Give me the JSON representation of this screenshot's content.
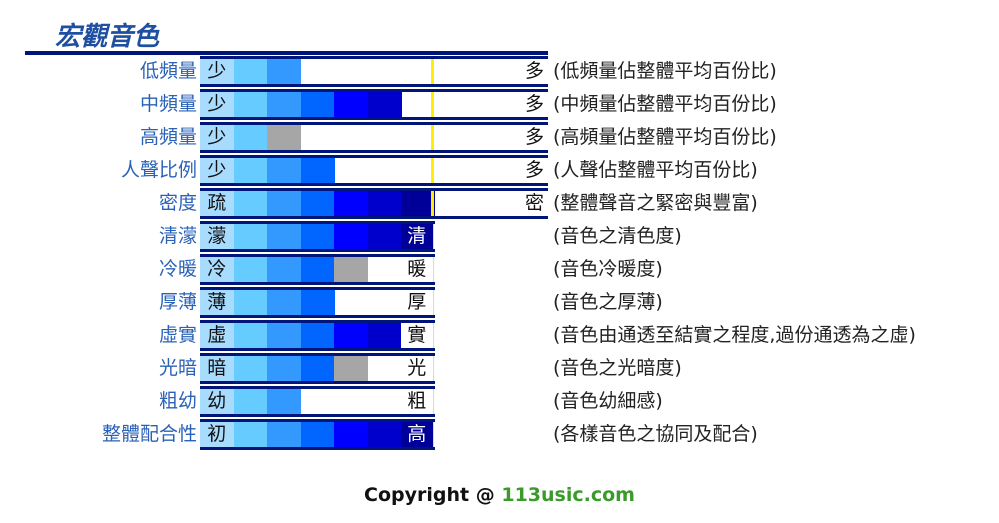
{
  "header": {
    "title": "宏觀音色"
  },
  "rows": [
    {
      "label": "低頻量",
      "low": "少",
      "high": "多",
      "description": "(低頻量佔整體平均百份比)",
      "level": 2,
      "extended": true
    },
    {
      "label": "中頻量",
      "low": "少",
      "high": "多",
      "description": "(中頻量佔整體平均百份比)",
      "level": 5,
      "extended": true
    },
    {
      "label": "高頻量",
      "low": "少",
      "high": "多",
      "description": "(高頻量佔整體平均百份比)",
      "level": 1.5,
      "extended": true
    },
    {
      "label": "人聲比例",
      "low": "少",
      "high": "多",
      "description": "(人聲佔整體平均百份比)",
      "level": 3,
      "extended": true
    },
    {
      "label": "密度",
      "low": "疏",
      "high": "密",
      "description": "(整體聲音之緊密與豐富)",
      "level": 6,
      "extended": true
    },
    {
      "label": "清濛",
      "low": "濛",
      "high": "清",
      "description": "(音色之清色度)",
      "level": 6,
      "extended": false
    },
    {
      "label": "冷暖",
      "low": "冷",
      "high": "暖",
      "description": "(音色冷暖度)",
      "level": 3.5,
      "extended": false
    },
    {
      "label": "厚薄",
      "low": "薄",
      "high": "厚",
      "description": "(音色之厚薄)",
      "level": 3,
      "extended": false
    },
    {
      "label": "虛實",
      "low": "虛",
      "high": "實",
      "description": "(音色由通透至結實之程度,過份通透為之虛)",
      "level": 5,
      "extended": false
    },
    {
      "label": "光暗",
      "low": "暗",
      "high": "光",
      "description": "(音色之光暗度)",
      "level": 3.5,
      "extended": false
    },
    {
      "label": "粗幼",
      "low": "幼",
      "high": "粗",
      "description": "(音色幼細感)",
      "level": 2,
      "extended": false
    },
    {
      "label": "整體配合性",
      "low": "初",
      "high": "高",
      "description": "(各樣音色之協同及配合)",
      "level": 6,
      "extended": false
    }
  ],
  "footer": {
    "copyright": "Copyright @ ",
    "site": "113usic.com"
  }
}
